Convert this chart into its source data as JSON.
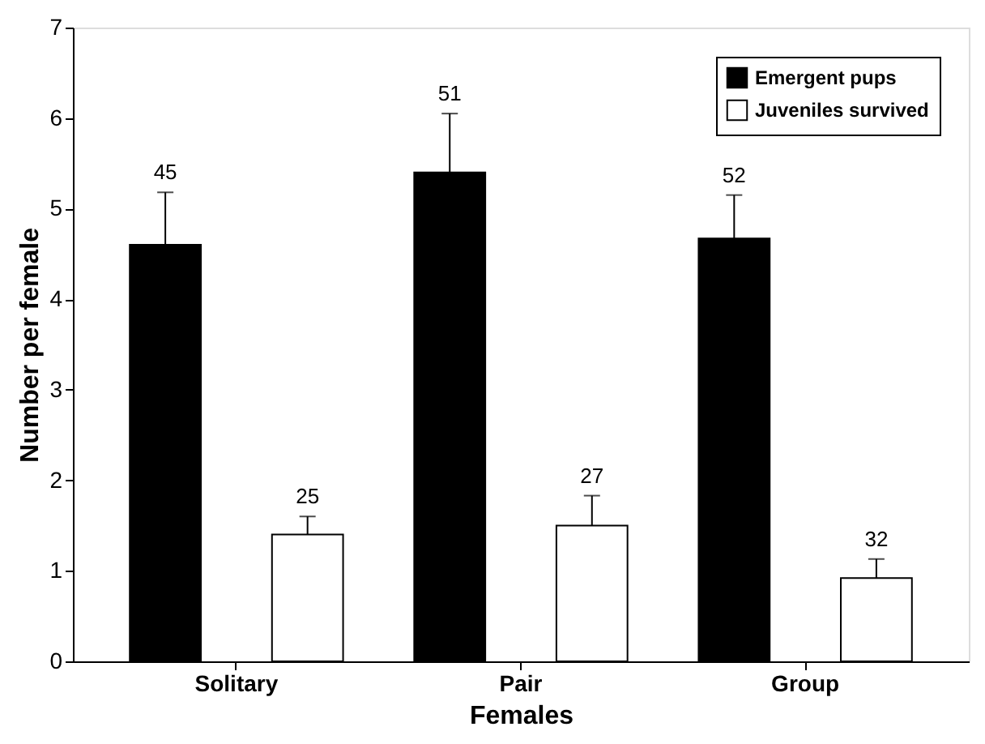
{
  "chart_data": {
    "type": "bar",
    "xlabel": "Females",
    "ylabel": "Number per female",
    "categories": [
      "Solitary",
      "Pair",
      "Group"
    ],
    "series": [
      {
        "name": "Emergent pups",
        "color": "#000000",
        "values": [
          4.6,
          5.4,
          4.67
        ],
        "errors": [
          [
            4.6,
            5.18
          ],
          [
            5.4,
            6.05
          ],
          [
            4.67,
            5.15
          ]
        ]
      },
      {
        "name": "Juveniles survived",
        "color": "#ffffff",
        "values": [
          1.4,
          1.5,
          0.92
        ],
        "errors": [
          [
            1.4,
            1.6
          ],
          [
            1.5,
            1.83
          ],
          [
            0.92,
            1.13
          ]
        ]
      }
    ],
    "annotations": [
      "45",
      "25",
      "51",
      "27",
      "52",
      "32"
    ],
    "ylim": [
      0,
      7
    ],
    "yticks": [
      0,
      1,
      2,
      3,
      4,
      5,
      6,
      7
    ],
    "grid": false,
    "legend": "top right"
  }
}
